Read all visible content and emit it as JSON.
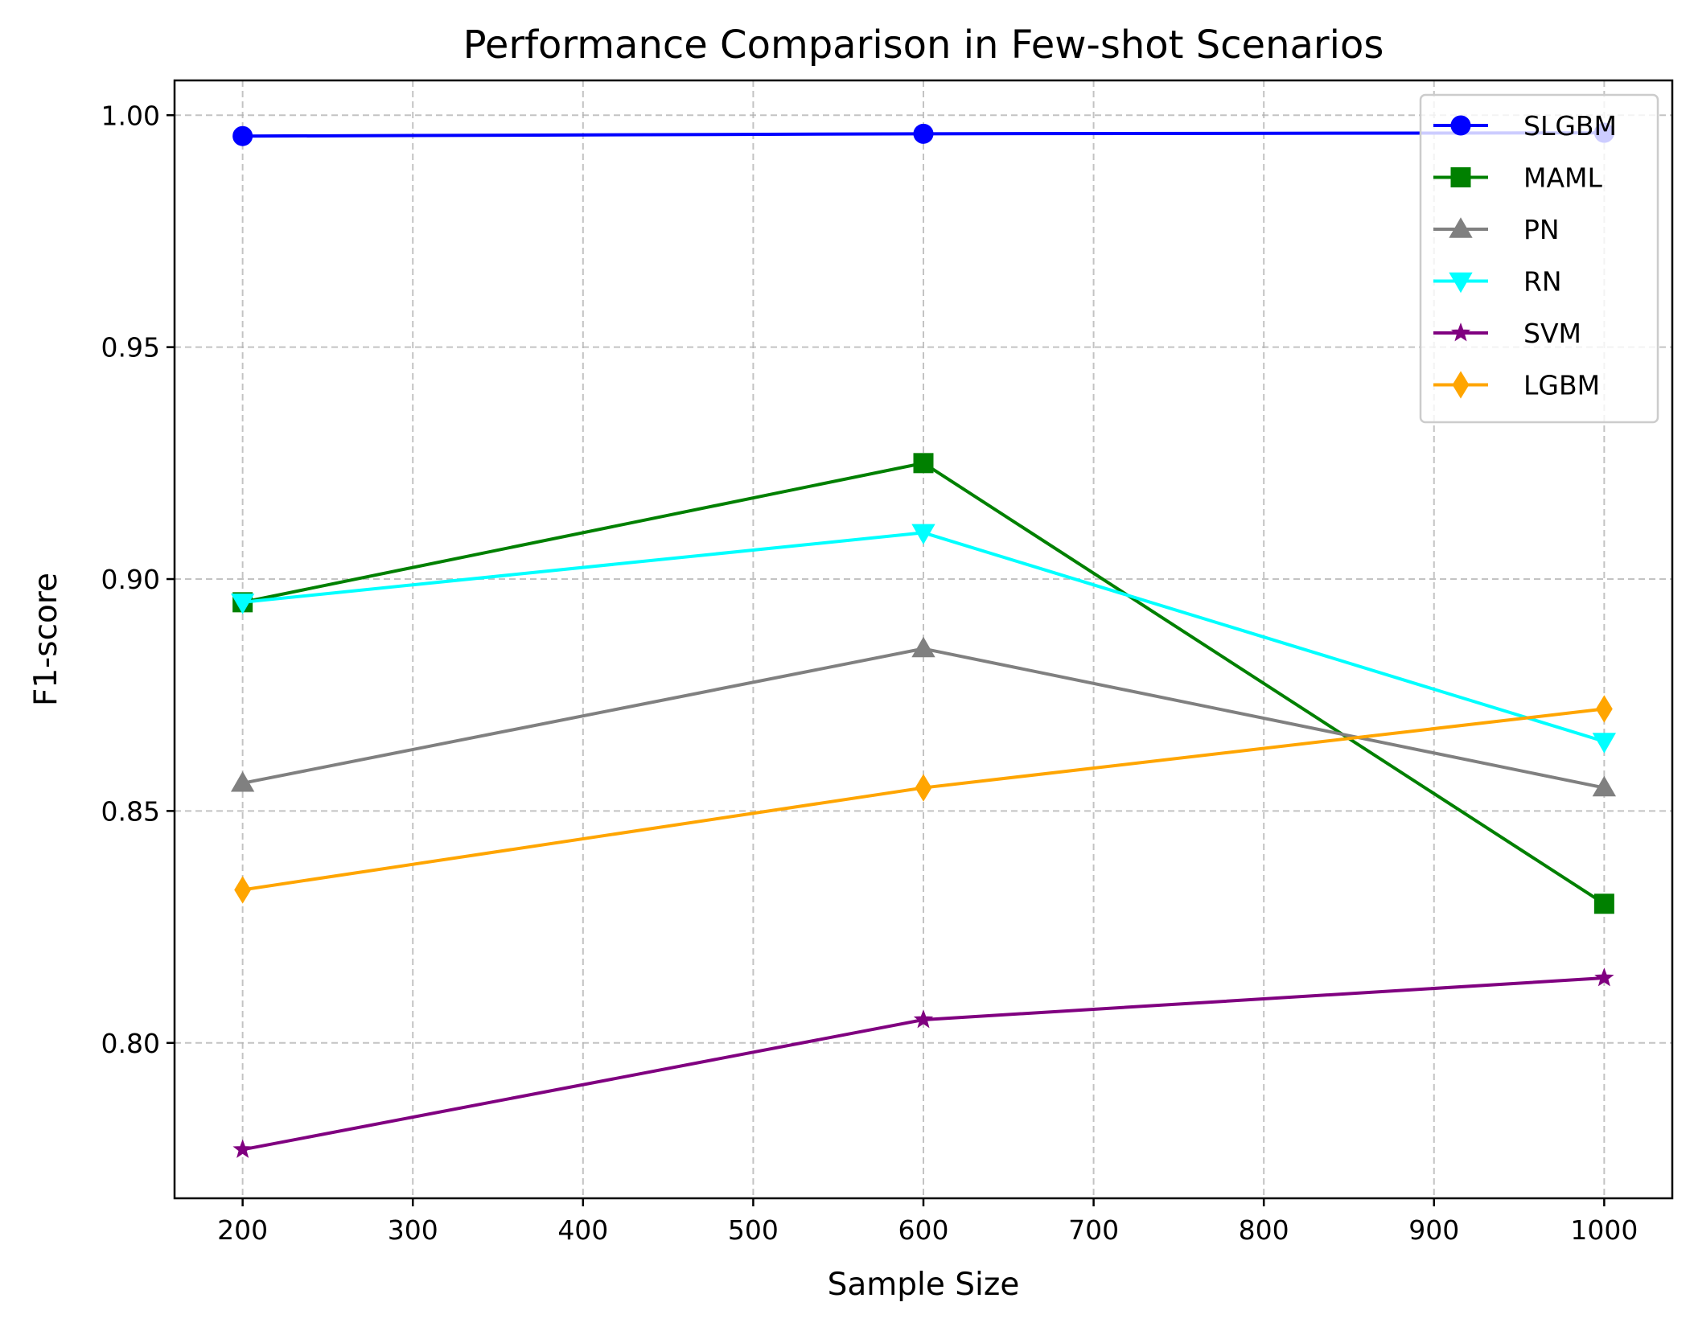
{
  "chart_data": {
    "type": "line",
    "title": "Performance Comparison in Few-shot Scenarios",
    "xlabel": "Sample Size",
    "ylabel": "F1-score",
    "x": [
      200,
      600,
      1000
    ],
    "xlim": [
      160,
      1040
    ],
    "ylim": [
      0.7665,
      1.0075
    ],
    "xticks": [
      200,
      300,
      400,
      500,
      600,
      700,
      800,
      900,
      1000
    ],
    "xtick_labels": [
      "200",
      "300",
      "400",
      "500",
      "600",
      "700",
      "800",
      "900",
      "1000"
    ],
    "yticks": [
      0.8,
      0.85,
      0.9,
      0.95,
      1.0
    ],
    "ytick_labels": [
      "0.80",
      "0.85",
      "0.90",
      "0.95",
      "1.00"
    ],
    "grid": true,
    "legend_position": "top-right",
    "series": [
      {
        "name": "SLGBM",
        "color": "#0000ff",
        "marker": "circle",
        "values": [
          0.9955,
          0.996,
          0.9962
        ]
      },
      {
        "name": "MAML",
        "color": "#008000",
        "marker": "square",
        "values": [
          0.895,
          0.925,
          0.83
        ]
      },
      {
        "name": "PN",
        "color": "#808080",
        "marker": "triangle-up",
        "values": [
          0.856,
          0.885,
          0.855
        ]
      },
      {
        "name": "RN",
        "color": "#00ffff",
        "marker": "triangle-down",
        "values": [
          0.895,
          0.91,
          0.865
        ]
      },
      {
        "name": "SVM",
        "color": "#800080",
        "marker": "star",
        "values": [
          0.777,
          0.805,
          0.814
        ]
      },
      {
        "name": "LGBM",
        "color": "#ffa500",
        "marker": "diamond",
        "values": [
          0.833,
          0.855,
          0.872
        ]
      }
    ]
  }
}
